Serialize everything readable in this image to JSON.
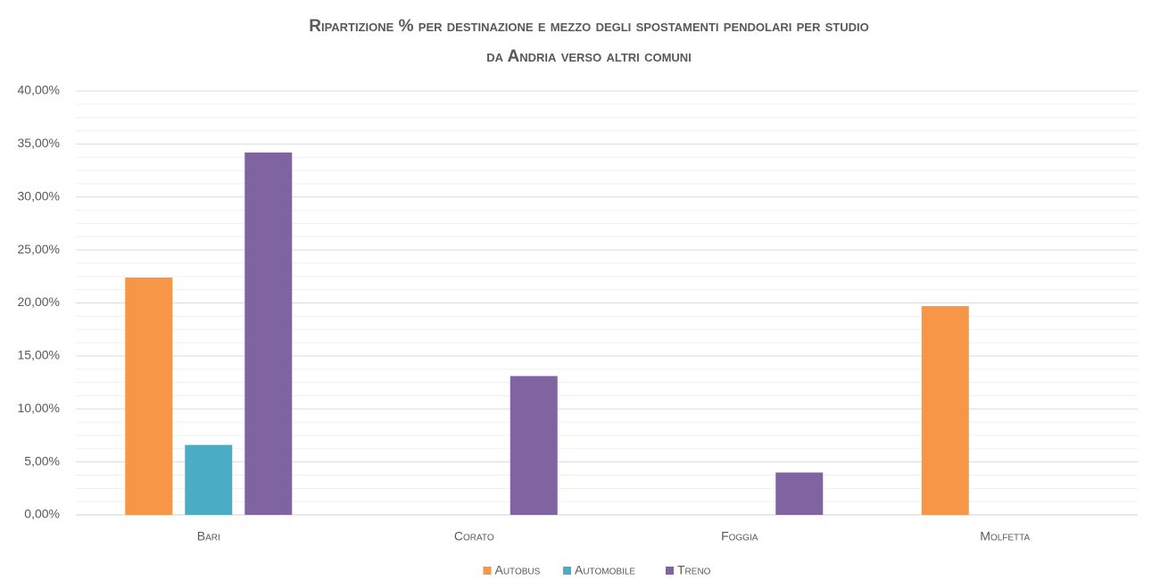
{
  "chart_data": {
    "type": "bar",
    "title": [
      "Ripartizione % per destinazione e mezzo degli spostamenti pendolari per studio",
      "da Andria verso altri comuni"
    ],
    "categories": [
      "Bari",
      "Corato",
      "Foggia",
      "Molfetta"
    ],
    "series": [
      {
        "name": "Autobus",
        "color": "#f79646",
        "values": [
          22.4,
          0,
          0,
          19.7
        ]
      },
      {
        "name": "Automobile",
        "color": "#4bacc6",
        "values": [
          6.6,
          0,
          0,
          0
        ]
      },
      {
        "name": "Treno",
        "color": "#8064a2",
        "values": [
          34.2,
          13.1,
          4.0,
          0
        ]
      }
    ],
    "ylim": [
      0,
      40
    ],
    "yticks": [
      {
        "value": 0,
        "label": "0,00%"
      },
      {
        "value": 5,
        "label": "5,00%"
      },
      {
        "value": 10,
        "label": "10,00%"
      },
      {
        "value": 15,
        "label": "15,00%"
      },
      {
        "value": 20,
        "label": "20,00%"
      },
      {
        "value": 25,
        "label": "25,00%"
      },
      {
        "value": 30,
        "label": "30,00%"
      },
      {
        "value": 35,
        "label": "35,00%"
      },
      {
        "value": 40,
        "label": "40,00%"
      }
    ],
    "grid": true,
    "legend": "bottom"
  }
}
